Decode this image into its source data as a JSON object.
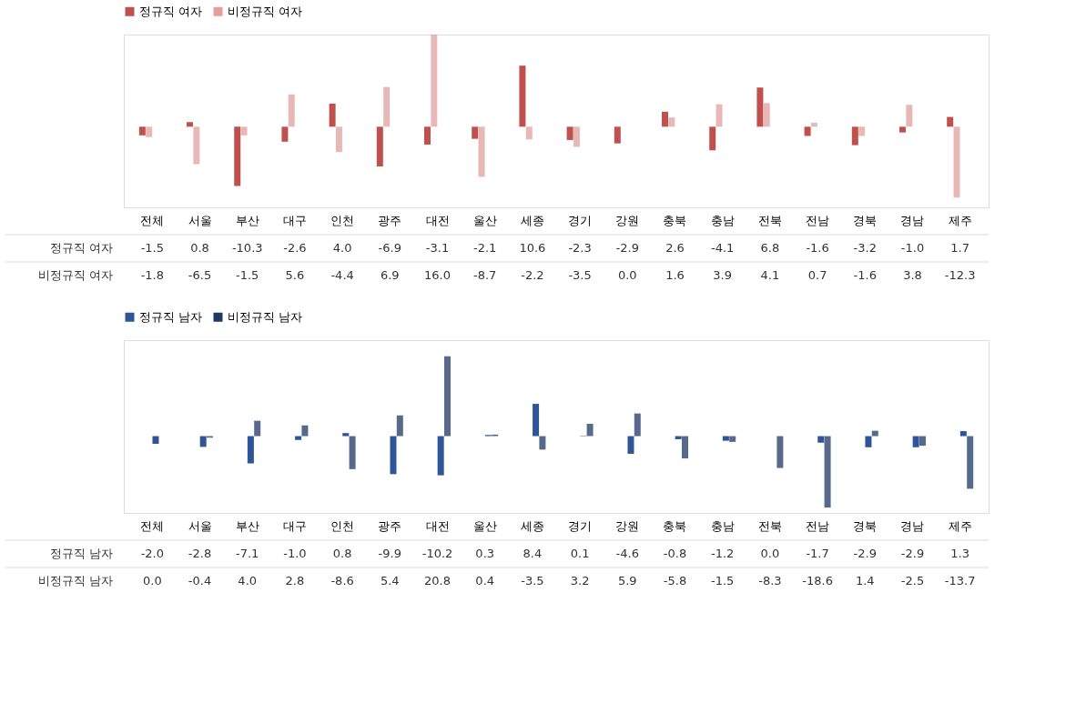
{
  "chart_data": [
    {
      "type": "bar",
      "categories": [
        "전체",
        "서울",
        "부산",
        "대구",
        "인천",
        "광주",
        "대전",
        "울산",
        "세종",
        "경기",
        "강원",
        "충북",
        "충남",
        "전북",
        "전남",
        "경북",
        "경남",
        "제주"
      ],
      "series": [
        {
          "name": "정규직 여자",
          "color": "#c0504d",
          "values": [
            -1.5,
            0.8,
            -10.3,
            -2.6,
            4.0,
            -6.9,
            -3.1,
            -2.1,
            10.6,
            -2.3,
            -2.9,
            2.6,
            -4.1,
            6.8,
            -1.6,
            -3.2,
            -1.0,
            1.7
          ],
          "value_labels": [
            "-1.5",
            "0.8",
            "-10.3",
            "-2.6",
            "4.0",
            "-6.9",
            "-3.1",
            "-2.1",
            "10.6",
            "-2.3",
            "-2.9",
            "2.6",
            "-4.1",
            "6.8",
            "-1.6",
            "-3.2",
            "-1.0",
            "1.7"
          ]
        },
        {
          "name": "비정규직 여자",
          "color": "#e0a09e",
          "values": [
            -1.8,
            -6.5,
            -1.5,
            5.6,
            -4.4,
            6.9,
            16.0,
            -8.7,
            -2.2,
            -3.5,
            0.0,
            1.6,
            3.9,
            4.1,
            0.7,
            -1.6,
            3.8,
            -12.3
          ],
          "value_labels": [
            "-1.8",
            "-6.5",
            "-1.5",
            "5.6",
            "-4.4",
            "6.9",
            "16.0",
            "-8.7",
            "-2.2",
            "-3.5",
            "0.0",
            "1.6",
            "3.9",
            "4.1",
            "0.7",
            "-1.6",
            "3.8",
            "-12.3"
          ]
        }
      ],
      "legend": "top"
    },
    {
      "type": "bar",
      "categories": [
        "전체",
        "서울",
        "부산",
        "대구",
        "인천",
        "광주",
        "대전",
        "울산",
        "세종",
        "경기",
        "강원",
        "충북",
        "충남",
        "전북",
        "전남",
        "경북",
        "경남",
        "제주"
      ],
      "series": [
        {
          "name": "정규직 남자",
          "color": "#2f5597",
          "values": [
            -2.0,
            -2.8,
            -7.1,
            -1.0,
            0.8,
            -9.9,
            -10.2,
            0.3,
            8.4,
            0.1,
            -4.6,
            -0.8,
            -1.2,
            0.0,
            -1.7,
            -2.9,
            -2.9,
            1.3
          ],
          "value_labels": [
            "-2.0",
            "-2.8",
            "-7.1",
            "-1.0",
            "0.8",
            "-9.9",
            "-10.2",
            "0.3",
            "8.4",
            "0.1",
            "-4.6",
            "-0.8",
            "-1.2",
            "0.0",
            "-1.7",
            "-2.9",
            "-2.9",
            "1.3"
          ]
        },
        {
          "name": "비정규직 남자",
          "color": "#1f3864",
          "values": [
            0.0,
            -0.4,
            4.0,
            2.8,
            -8.6,
            5.4,
            20.8,
            0.4,
            -3.5,
            3.2,
            5.9,
            -5.8,
            -1.5,
            -8.3,
            -18.6,
            1.4,
            -2.5,
            -13.7
          ],
          "value_labels": [
            "0.0",
            "-0.4",
            "4.0",
            "2.8",
            "-8.6",
            "5.4",
            "20.8",
            "0.4",
            "-3.5",
            "3.2",
            "5.9",
            "-5.8",
            "-1.5",
            "-8.3",
            "-18.6",
            "1.4",
            "-2.5",
            "-13.7"
          ]
        }
      ],
      "legend": "top"
    }
  ]
}
